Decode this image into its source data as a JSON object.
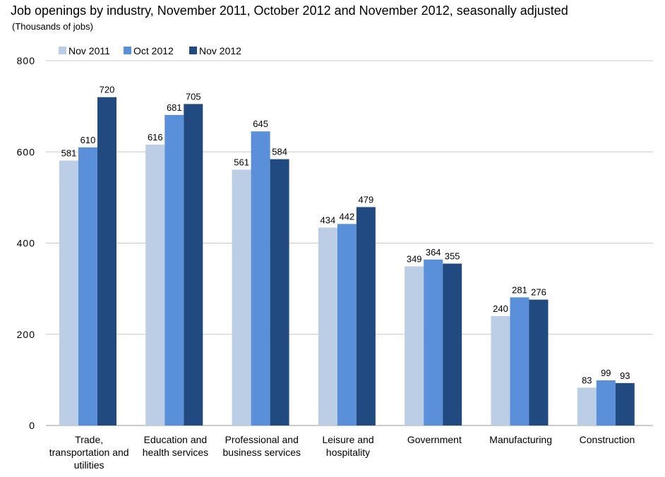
{
  "title": "Job openings by industry, November 2011, October 2012 and November 2012, seasonally adjusted",
  "subtitle": "(Thousands of jobs)",
  "chart_data": {
    "type": "bar",
    "title": "Job openings by industry, November 2011, October 2012 and November 2012, seasonally adjusted",
    "subtitle": "(Thousands of jobs)",
    "categories": [
      [
        "Trade,",
        "transportation and",
        "utilities"
      ],
      [
        "Education and",
        "health services"
      ],
      [
        "Professional and",
        "business services"
      ],
      [
        "Leisure and",
        "hospitality"
      ],
      [
        "Government"
      ],
      [
        "Manufacturing"
      ],
      [
        "Construction"
      ]
    ],
    "series": [
      {
        "name": "Nov 2011",
        "color": "#bccde6",
        "values": [
          581,
          616,
          561,
          434,
          349,
          240,
          83
        ]
      },
      {
        "name": "Oct 2012",
        "color": "#5a90d9",
        "values": [
          610,
          681,
          645,
          442,
          364,
          281,
          99
        ]
      },
      {
        "name": "Nov 2012",
        "color": "#214a80",
        "values": [
          720,
          705,
          584,
          479,
          355,
          276,
          93
        ]
      }
    ],
    "ylim": [
      0,
      800
    ],
    "yticks": [
      0,
      200,
      400,
      600,
      800
    ],
    "grid": true,
    "legend": "top-left",
    "xlabel": "",
    "ylabel": ""
  }
}
